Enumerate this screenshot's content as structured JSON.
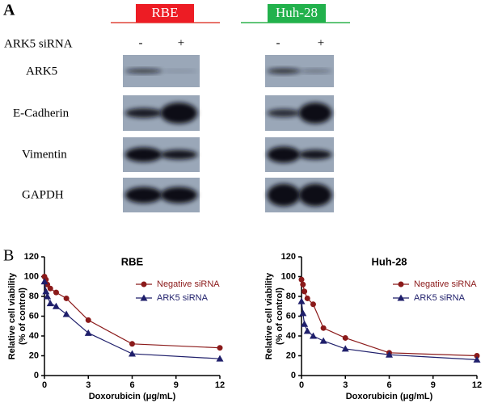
{
  "panel_a": {
    "label": "A",
    "cell_lines": [
      "RBE",
      "Huh-28"
    ],
    "treatment_label": "ARK5 siRNA",
    "lane_labels": [
      [
        "-",
        "+"
      ],
      [
        "-",
        "+"
      ]
    ],
    "proteins": [
      "ARK5",
      "E-Cadherin",
      "Vimentin",
      "GAPDH"
    ]
  },
  "panel_b": {
    "label": "B"
  },
  "chart_data": [
    {
      "type": "line",
      "title": "RBE",
      "xlabel": "Doxorubicin (μg/mL)",
      "ylabel": [
        "Relative cell viability",
        "(% of control)"
      ],
      "x": [
        0,
        0.1,
        0.2,
        0.4,
        0.8,
        1.5,
        3,
        6,
        12
      ],
      "series": [
        {
          "name": "Negative siRNA",
          "color": "#8b1a1a",
          "marker": "circle",
          "values": [
            100,
            97,
            92,
            88,
            84,
            78,
            56,
            32,
            28
          ]
        },
        {
          "name": "ARK5 siRNA",
          "color": "#1f1f6b",
          "marker": "triangle",
          "values": [
            95,
            85,
            80,
            73,
            70,
            62,
            43,
            22,
            17
          ]
        }
      ],
      "xlim": [
        0,
        12
      ],
      "xticks": [
        0,
        3,
        6,
        9,
        12
      ],
      "ylim": [
        0,
        120
      ],
      "yticks": [
        0,
        20,
        40,
        60,
        80,
        100,
        120
      ],
      "legend": "upper right"
    },
    {
      "type": "line",
      "title": "Huh-28",
      "xlabel": "Doxorubicin (μg/mL)",
      "ylabel": [
        "Relative cell viability",
        "(% of control)"
      ],
      "x": [
        0,
        0.1,
        0.2,
        0.4,
        0.8,
        1.5,
        3,
        6,
        12
      ],
      "series": [
        {
          "name": "Negative siRNA",
          "color": "#8b1a1a",
          "marker": "circle",
          "values": [
            97,
            92,
            85,
            78,
            72,
            48,
            38,
            23,
            20
          ]
        },
        {
          "name": "ARK5 siRNA",
          "color": "#1f1f6b",
          "marker": "triangle",
          "values": [
            75,
            63,
            52,
            45,
            40,
            35,
            27,
            21,
            16
          ]
        }
      ],
      "xlim": [
        0,
        12
      ],
      "xticks": [
        0,
        3,
        6,
        9,
        12
      ],
      "ylim": [
        0,
        120
      ],
      "yticks": [
        0,
        20,
        40,
        60,
        80,
        100,
        120
      ],
      "legend": "upper right"
    }
  ]
}
